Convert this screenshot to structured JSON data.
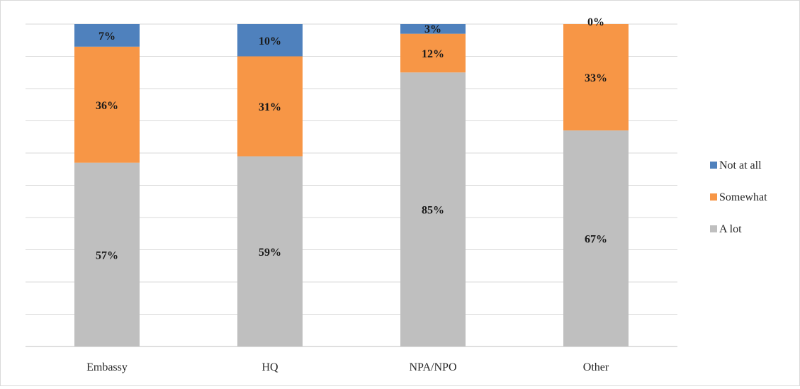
{
  "chart_data": {
    "type": "bar",
    "stacked": true,
    "percent": true,
    "categories": [
      "Embassy",
      "HQ",
      "NPA/NPO",
      "Other"
    ],
    "series": [
      {
        "name": "A lot",
        "values": [
          57,
          59,
          85,
          67
        ],
        "labels": [
          "57%",
          "59%",
          "85%",
          "67%"
        ],
        "color": "#BFBFBF"
      },
      {
        "name": "Somewhat",
        "values": [
          36,
          31,
          12,
          33
        ],
        "labels": [
          "36%",
          "31%",
          "12%",
          "33%"
        ],
        "color": "#F79646"
      },
      {
        "name": "Not at all",
        "values": [
          7,
          10,
          3,
          0
        ],
        "labels": [
          "7%",
          "10%",
          "3%",
          "0%"
        ],
        "color": "#4F81BD"
      }
    ],
    "ylim": [
      0,
      100
    ],
    "grid": true,
    "legend_position": "right",
    "legend_order": [
      "Not at all",
      "Somewhat",
      "A lot"
    ]
  }
}
